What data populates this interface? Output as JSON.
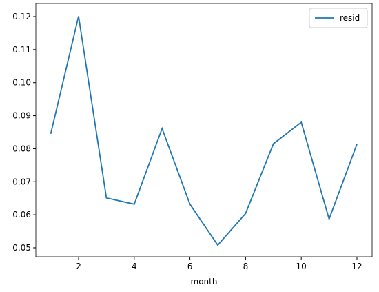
{
  "chart_data": {
    "type": "line",
    "xlabel": "month",
    "x": [
      1,
      2,
      3,
      4,
      5,
      6,
      7,
      8,
      9,
      10,
      11,
      12
    ],
    "series": [
      {
        "name": "resid",
        "color": "#1f77b4",
        "values": [
          0.0845,
          0.1201,
          0.0651,
          0.0632,
          0.0861,
          0.0632,
          0.0508,
          0.0604,
          0.0815,
          0.088,
          0.0587,
          0.0814
        ]
      }
    ],
    "xlim": [
      0.465,
      12.545
    ],
    "xticks": [
      2,
      4,
      6,
      8,
      10,
      12
    ],
    "ylim": [
      0.04728,
      0.12397
    ],
    "yticks": [
      {
        "value": 0.05,
        "label": "0.05"
      },
      {
        "value": 0.06,
        "label": "0.06"
      },
      {
        "value": 0.07,
        "label": "0.07"
      },
      {
        "value": 0.08,
        "label": "0.08"
      },
      {
        "value": 0.09,
        "label": "0.09"
      },
      {
        "value": 0.1,
        "label": "0.10"
      },
      {
        "value": 0.11,
        "label": "0.11"
      },
      {
        "value": 0.12,
        "label": "0.12"
      }
    ],
    "legend": "upper right"
  }
}
